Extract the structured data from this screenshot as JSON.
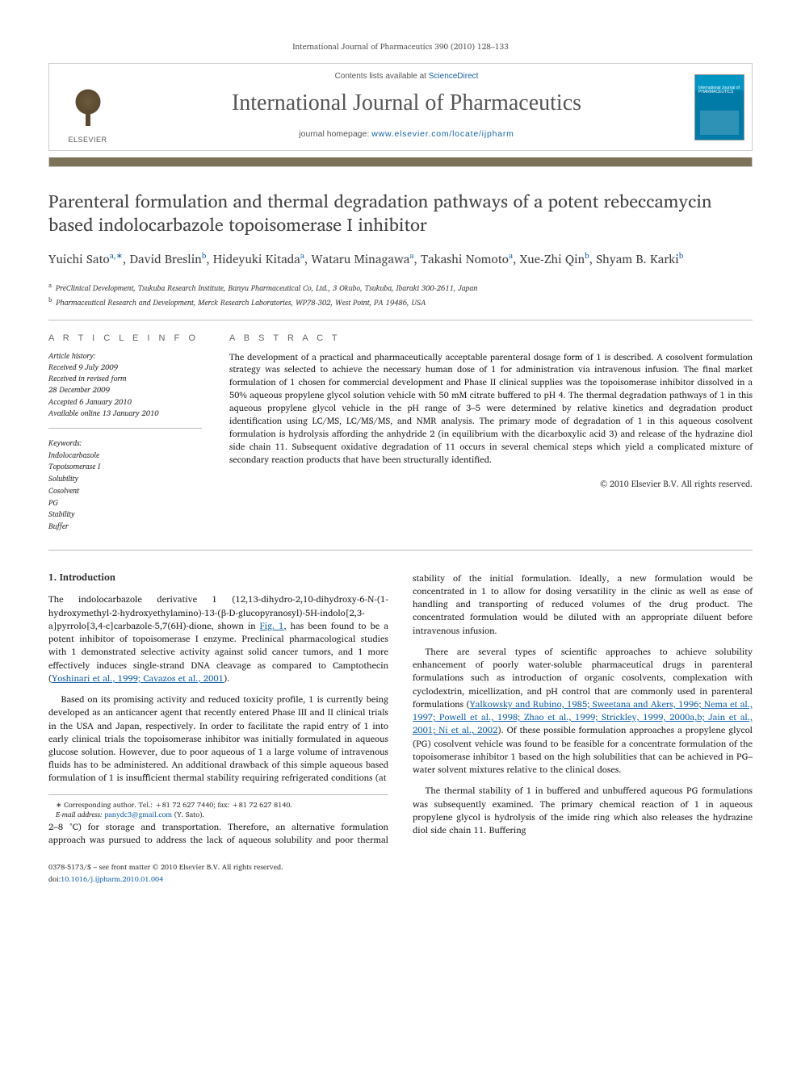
{
  "page_header": "International Journal of Pharmaceutics 390 (2010) 128–133",
  "masthead": {
    "contents_prefix": "Contents lists available at ",
    "contents_link_text": "ScienceDirect",
    "journal_name": "International Journal of Pharmaceutics",
    "homepage_prefix": "journal homepage: ",
    "homepage_link_text": "www.elsevier.com/locate/ijpharm",
    "elsevier_label": "ELSEVIER",
    "cover_title": "International Journal of PHARMACEUTICS"
  },
  "article": {
    "title": "Parenteral formulation and thermal degradation pathways of a potent rebeccamycin based indolocarbazole topoisomerase I inhibitor",
    "authors_html_parts": [
      {
        "name": "Yuichi Sato",
        "sup": "a,∗"
      },
      {
        "name": "David Breslin",
        "sup": "b"
      },
      {
        "name": "Hideyuki Kitada",
        "sup": "a"
      },
      {
        "name": "Wataru Minagawa",
        "sup": "a"
      },
      {
        "name": "Takashi Nomoto",
        "sup": "a"
      },
      {
        "name": "Xue-Zhi Qin",
        "sup": "b"
      },
      {
        "name": "Shyam B. Karki",
        "sup": "b"
      }
    ],
    "affiliations": [
      {
        "marker": "a",
        "text": "PreClinical Development, Tsukuba Research Institute, Banyu Pharmaceutical Co, Ltd., 3 Okubo, Tsukuba, Ibaraki 300-2611, Japan"
      },
      {
        "marker": "b",
        "text": "Pharmaceutical Research and Development, Merck Research Laboratories, WP78-302, West Point, PA 19486, USA"
      }
    ]
  },
  "info": {
    "heading": "A R T I C L E   I N F O",
    "history_label": "Article history:",
    "history": [
      "Received 9 July 2009",
      "Received in revised form",
      "28 December 2009",
      "Accepted 6 January 2010",
      "Available online 13 January 2010"
    ],
    "keywords_label": "Keywords:",
    "keywords": [
      "Indolocarbazole",
      "Topoisomerase I",
      "Solubility",
      "Cosolvent",
      "PG",
      "Stability",
      "Buffer"
    ]
  },
  "abstract": {
    "heading": "A B S T R A C T",
    "text": "The development of a practical and pharmaceutically acceptable parenteral dosage form of 1 is described. A cosolvent formulation strategy was selected to achieve the necessary human dose of 1 for administration via intravenous infusion. The final market formulation of 1 chosen for commercial development and Phase II clinical supplies was the topoisomerase inhibitor dissolved in a 50% aqueous propylene glycol solution vehicle with 50 mM citrate buffered to pH 4. The thermal degradation pathways of 1 in this aqueous propylene glycol vehicle in the pH range of 3–5 were determined by relative kinetics and degradation product identification using LC/MS, LC/MS/MS, and NMR analysis. The primary mode of degradation of 1 in this aqueous cosolvent formulation is hydrolysis affording the anhydride 2 (in equilibrium with the dicarboxylic acid 3) and release of the hydrazine diol side chain 11. Subsequent oxidative degradation of 11 occurs in several chemical steps which yield a complicated mixture of secondary reaction products that have been structurally identified.",
    "copyright": "© 2010 Elsevier B.V. All rights reserved."
  },
  "body": {
    "section_heading": "1. Introduction",
    "p1": "The indolocarbazole derivative 1 (12,13-dihydro-2,10-dihydroxy-6-N-(1-hydroxymethyl-2-hydroxyethylamino)-13-(β-D-glucopyranosyl)-5H-indolo[2,3-a]pyrrolo[3,4-c]carbazole-5,7(6H)-dione, shown in ",
    "p1_fig": "Fig. 1",
    "p1b": ", has been found to be a potent inhibitor of topoisomerase I enzyme. Preclinical pharmacological studies with 1 demonstrated selective activity against solid cancer tumors, and 1 more effectively induces single-strand DNA cleavage as compared to Camptothecin (",
    "p1_ref": "Yoshinari et al., 1999; Cavazos et al., 2001",
    "p1c": ").",
    "p2": "Based on its promising activity and reduced toxicity profile, 1 is currently being developed as an anticancer agent that recently entered Phase III and II clinical trials in the USA and Japan, respectively. In order to facilitate the rapid entry of 1 into early clinical trials the topoisomerase inhibitor was initially formulated in aqueous glucose solution. However, due to poor aqueous of 1 a large volume of intravenous fluids has to be administered. An additional drawback of this simple aqueous based formulation of 1 is insufficient thermal stability requiring refrigerated conditions (at",
    "p3": "2–8 °C) for storage and transportation. Therefore, an alternative formulation approach was pursued to address the lack of aqueous solubility and poor thermal stability of the initial formulation. Ideally, a new formulation would be concentrated in 1 to allow for dosing versatility in the clinic as well as ease of handling and transporting of reduced volumes of the drug product. The concentrated formulation would be diluted with an appropriate diluent before intravenous infusion.",
    "p4a": "There are several types of scientific approaches to achieve solubility enhancement of poorly water-soluble pharmaceutical drugs in parenteral formulations such as introduction of organic cosolvents, complexation with cyclodextrin, micellization, and pH control that are commonly used in parenteral formulations (",
    "p4_ref": "Yalkowsky and Rubino, 1985; Sweetana and Akers, 1996; Nema et al., 1997; Powell et al., 1998; Zhao et al., 1999; Strickley, 1999, 2000a,b; Jain et al., 2001; Ni et al., 2002",
    "p4b": "). Of these possible formulation approaches a propylene glycol (PG) cosolvent vehicle was found to be feasible for a concentrate formulation of the topoisomerase inhibitor 1 based on the high solubilities that can be achieved in PG–water solvent mixtures relative to the clinical doses.",
    "p5": "The thermal stability of 1 in buffered and unbuffered aqueous PG formulations was subsequently examined. The primary chemical reaction of 1 in aqueous propylene glycol is hydrolysis of the imide ring which also releases the hydrazine diol side chain 11. Buffering"
  },
  "footnote": {
    "corr_label": "∗ Corresponding author. Tel.: +81 72 627 7440; fax: +81 72 627 8140.",
    "email_label": "E-mail address:",
    "email": "panydc3@gmail.com",
    "email_who": "(Y. Sato)."
  },
  "footer": {
    "left1": "0378-5173/$ – see front matter © 2010 Elsevier B.V. All rights reserved.",
    "left2_prefix": "doi:",
    "left2_link": "10.1016/j.ijpharm.2010.01.004"
  },
  "colors": {
    "link": "#1962a8",
    "rule_bar": "#7b7257",
    "cover_top": "#0096c4",
    "cover_body": "#007ba8"
  }
}
